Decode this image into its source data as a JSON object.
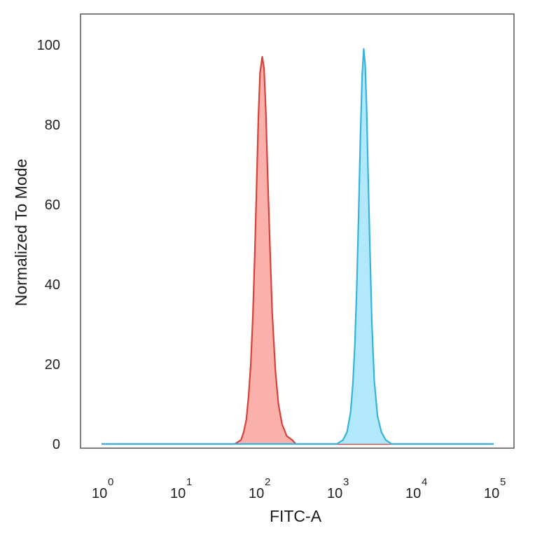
{
  "chart_data": {
    "type": "area",
    "title": "",
    "xlabel": "FITC-A",
    "ylabel": "Normalized To Mode",
    "x_scale": "log",
    "xlim": [
      1,
      100000
    ],
    "ylim": [
      0,
      100
    ],
    "x_ticks": [
      {
        "base": "10",
        "exp": "0",
        "value": 1
      },
      {
        "base": "10",
        "exp": "1",
        "value": 10
      },
      {
        "base": "10",
        "exp": "2",
        "value": 100
      },
      {
        "base": "10",
        "exp": "3",
        "value": 1000
      },
      {
        "base": "10",
        "exp": "4",
        "value": 10000
      },
      {
        "base": "10",
        "exp": "5",
        "value": 100000
      }
    ],
    "y_ticks": [
      "0",
      "20",
      "40",
      "60",
      "80",
      "100"
    ],
    "grid": false,
    "legend": "none",
    "series": [
      {
        "color_line": "#d9403a",
        "color_fill": "#f9a7a2",
        "points": [
          [
            1,
            0
          ],
          [
            50,
            0
          ],
          [
            60,
            1
          ],
          [
            65,
            3
          ],
          [
            70,
            6
          ],
          [
            75,
            12
          ],
          [
            80,
            20
          ],
          [
            85,
            32
          ],
          [
            90,
            48
          ],
          [
            95,
            65
          ],
          [
            100,
            82
          ],
          [
            105,
            93
          ],
          [
            112,
            97
          ],
          [
            118,
            94
          ],
          [
            124,
            84
          ],
          [
            130,
            70
          ],
          [
            140,
            50
          ],
          [
            150,
            33
          ],
          [
            165,
            18
          ],
          [
            180,
            10
          ],
          [
            200,
            5
          ],
          [
            230,
            2
          ],
          [
            270,
            1
          ],
          [
            300,
            0
          ],
          [
            100000,
            0
          ]
        ]
      },
      {
        "color_line": "#36b3dc",
        "color_fill": "#a8e5fb",
        "points": [
          [
            1,
            0
          ],
          [
            1000,
            0
          ],
          [
            1200,
            1
          ],
          [
            1350,
            3
          ],
          [
            1500,
            8
          ],
          [
            1600,
            15
          ],
          [
            1700,
            25
          ],
          [
            1800,
            40
          ],
          [
            1900,
            58
          ],
          [
            2000,
            77
          ],
          [
            2100,
            92
          ],
          [
            2200,
            99
          ],
          [
            2300,
            95
          ],
          [
            2400,
            84
          ],
          [
            2500,
            68
          ],
          [
            2650,
            48
          ],
          [
            2800,
            30
          ],
          [
            3000,
            16
          ],
          [
            3300,
            7
          ],
          [
            3700,
            3
          ],
          [
            4200,
            1
          ],
          [
            5000,
            0
          ],
          [
            100000,
            0
          ]
        ]
      }
    ]
  }
}
